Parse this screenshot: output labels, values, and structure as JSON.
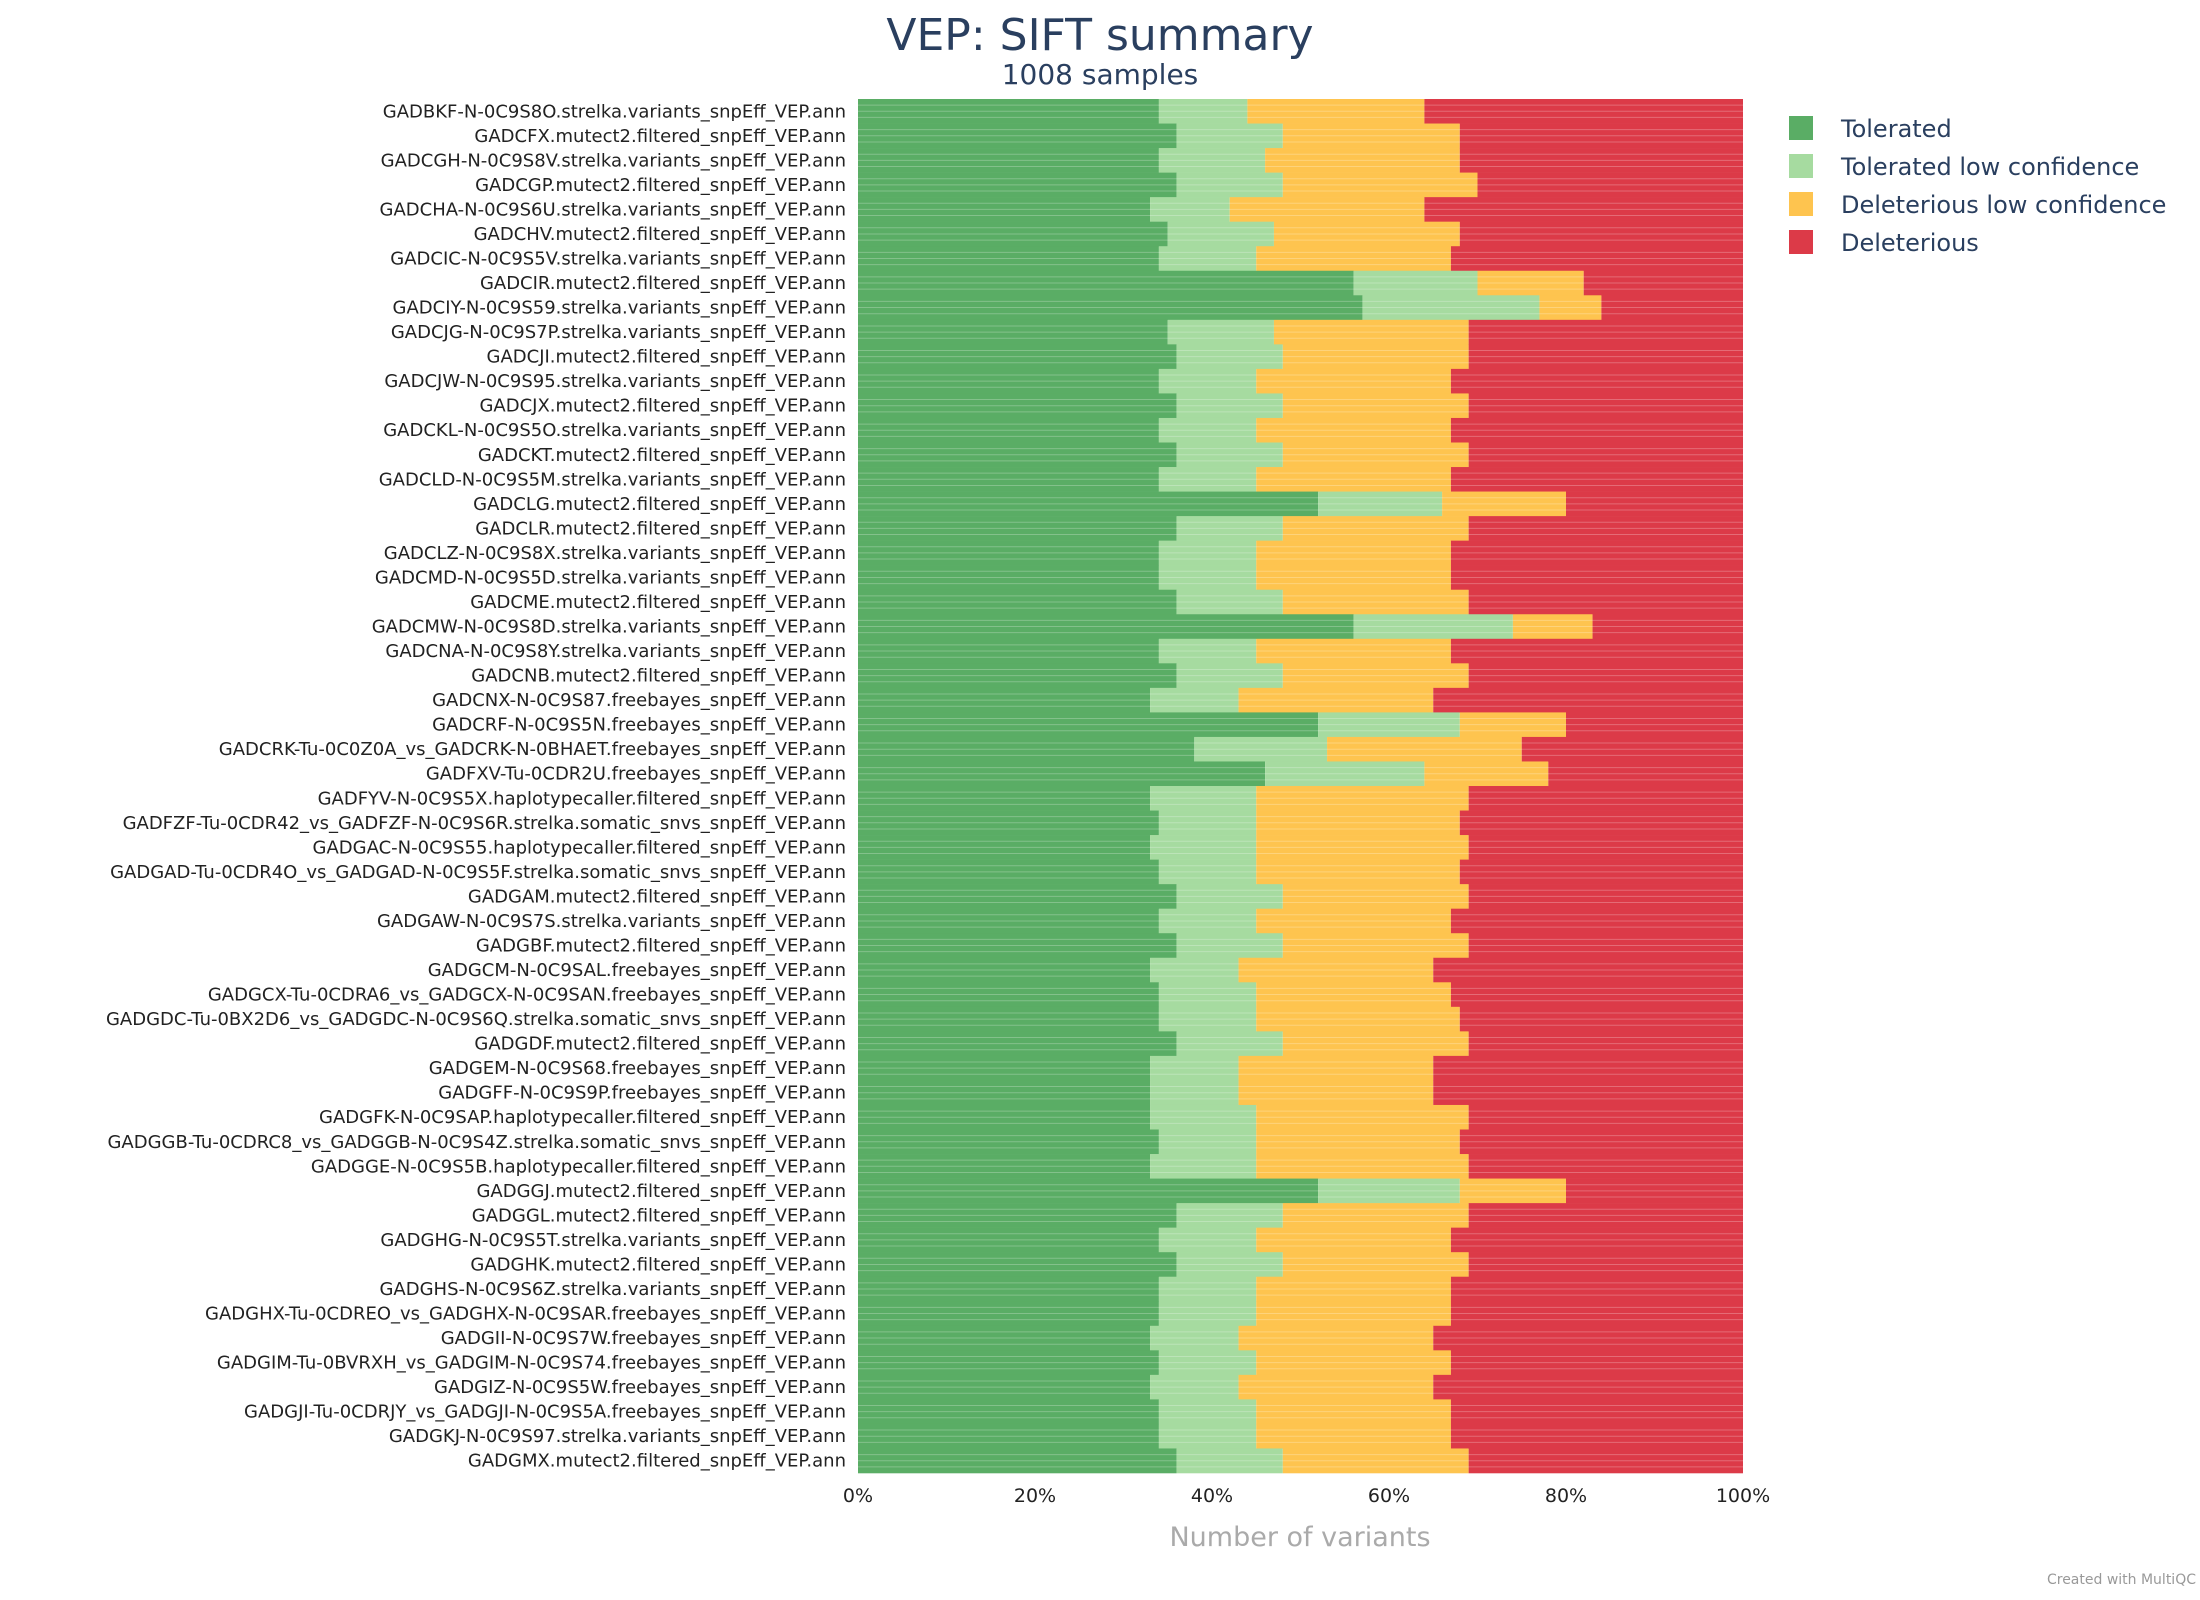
{
  "chart_data": {
    "type": "bar",
    "orientation": "horizontal",
    "stacked": "percent",
    "title": "VEP: SIFT summary",
    "subtitle": "1008 samples",
    "xlabel": "Number of variants",
    "xticks": [
      "0%",
      "20%",
      "40%",
      "60%",
      "80%",
      "100%"
    ],
    "xlim": [
      0,
      100
    ],
    "legend_position": "top-right",
    "series": [
      {
        "name": "Tolerated",
        "color": "#5aad65"
      },
      {
        "name": "Tolerated low confidence",
        "color": "#a6dba0"
      },
      {
        "name": "Deleterious low confidence",
        "color": "#fec44f"
      },
      {
        "name": "Deleterious",
        "color": "#dc3a48"
      }
    ],
    "sample_count": 1008,
    "typical_share_percent": {
      "Tolerated": 33,
      "Tolerated low confidence": 13,
      "Deleterious low confidence": 23,
      "Deleterious": 31
    },
    "labeled_categories": [
      {
        "label": "GADBKF-N-0C9S8O.strelka.variants_snpEff_VEP.ann",
        "values": [
          34,
          10,
          20,
          36
        ]
      },
      {
        "label": "GADCFX.mutect2.filtered_snpEff_VEP.ann",
        "values": [
          36,
          12,
          20,
          32
        ]
      },
      {
        "label": "GADCGH-N-0C9S8V.strelka.variants_snpEff_VEP.ann",
        "values": [
          34,
          12,
          22,
          32
        ]
      },
      {
        "label": "GADCGP.mutect2.filtered_snpEff_VEP.ann",
        "values": [
          36,
          12,
          22,
          30
        ]
      },
      {
        "label": "GADCHA-N-0C9S6U.strelka.variants_snpEff_VEP.ann",
        "values": [
          33,
          9,
          22,
          36
        ]
      },
      {
        "label": "GADCHV.mutect2.filtered_snpEff_VEP.ann",
        "values": [
          35,
          12,
          21,
          32
        ]
      },
      {
        "label": "GADCIC-N-0C9S5V.strelka.variants_snpEff_VEP.ann",
        "values": [
          34,
          11,
          22,
          33
        ]
      },
      {
        "label": "GADCIR.mutect2.filtered_snpEff_VEP.ann",
        "values": [
          56,
          14,
          12,
          18
        ]
      },
      {
        "label": "GADCIY-N-0C9S59.strelka.variants_snpEff_VEP.ann",
        "values": [
          57,
          20,
          7,
          16
        ]
      },
      {
        "label": "GADCJG-N-0C9S7P.strelka.variants_snpEff_VEP.ann",
        "values": [
          35,
          12,
          22,
          31
        ]
      },
      {
        "label": "GADCJI.mutect2.filtered_snpEff_VEP.ann",
        "values": [
          36,
          12,
          21,
          31
        ]
      },
      {
        "label": "GADCJW-N-0C9S95.strelka.variants_snpEff_VEP.ann",
        "values": [
          34,
          11,
          22,
          33
        ]
      },
      {
        "label": "GADCJX.mutect2.filtered_snpEff_VEP.ann",
        "values": [
          36,
          12,
          21,
          31
        ]
      },
      {
        "label": "GADCKL-N-0C9S5O.strelka.variants_snpEff_VEP.ann",
        "values": [
          34,
          11,
          22,
          33
        ]
      },
      {
        "label": "GADCKT.mutect2.filtered_snpEff_VEP.ann",
        "values": [
          36,
          12,
          21,
          31
        ]
      },
      {
        "label": "GADCLD-N-0C9S5M.strelka.variants_snpEff_VEP.ann",
        "values": [
          34,
          11,
          22,
          33
        ]
      },
      {
        "label": "GADCLG.mutect2.filtered_snpEff_VEP.ann",
        "values": [
          52,
          14,
          14,
          20
        ]
      },
      {
        "label": "GADCLR.mutect2.filtered_snpEff_VEP.ann",
        "values": [
          36,
          12,
          21,
          31
        ]
      },
      {
        "label": "GADCLZ-N-0C9S8X.strelka.variants_snpEff_VEP.ann",
        "values": [
          34,
          11,
          22,
          33
        ]
      },
      {
        "label": "GADCMD-N-0C9S5D.strelka.variants_snpEff_VEP.ann",
        "values": [
          34,
          11,
          22,
          33
        ]
      },
      {
        "label": "GADCME.mutect2.filtered_snpEff_VEP.ann",
        "values": [
          36,
          12,
          21,
          31
        ]
      },
      {
        "label": "GADCMW-N-0C9S8D.strelka.variants_snpEff_VEP.ann",
        "values": [
          56,
          18,
          9,
          17
        ]
      },
      {
        "label": "GADCNA-N-0C9S8Y.strelka.variants_snpEff_VEP.ann",
        "values": [
          34,
          11,
          22,
          33
        ]
      },
      {
        "label": "GADCNB.mutect2.filtered_snpEff_VEP.ann",
        "values": [
          36,
          12,
          21,
          31
        ]
      },
      {
        "label": "GADCNX-N-0C9S87.freebayes_snpEff_VEP.ann",
        "values": [
          33,
          10,
          22,
          35
        ]
      },
      {
        "label": "GADCRF-N-0C9S5N.freebayes_snpEff_VEP.ann",
        "values": [
          52,
          16,
          12,
          20
        ]
      },
      {
        "label": "GADCRK-Tu-0C0Z0A_vs_GADCRK-N-0BHAET.freebayes_snpEff_VEP.ann",
        "values": [
          38,
          15,
          22,
          25
        ]
      },
      {
        "label": "GADFXV-Tu-0CDR2U.freebayes_snpEff_VEP.ann",
        "values": [
          46,
          18,
          14,
          22
        ]
      },
      {
        "label": "GADFYV-N-0C9S5X.haplotypecaller.filtered_snpEff_VEP.ann",
        "values": [
          33,
          12,
          24,
          31
        ]
      },
      {
        "label": "GADFZF-Tu-0CDR42_vs_GADFZF-N-0C9S6R.strelka.somatic_snvs_snpEff_VEP.ann",
        "values": [
          34,
          11,
          23,
          32
        ]
      },
      {
        "label": "GADGAC-N-0C9S55.haplotypecaller.filtered_snpEff_VEP.ann",
        "values": [
          33,
          12,
          24,
          31
        ]
      },
      {
        "label": "GADGAD-Tu-0CDR4O_vs_GADGAD-N-0C9S5F.strelka.somatic_snvs_snpEff_VEP.ann",
        "values": [
          34,
          11,
          23,
          32
        ]
      },
      {
        "label": "GADGAM.mutect2.filtered_snpEff_VEP.ann",
        "values": [
          36,
          12,
          21,
          31
        ]
      },
      {
        "label": "GADGAW-N-0C9S7S.strelka.variants_snpEff_VEP.ann",
        "values": [
          34,
          11,
          22,
          33
        ]
      },
      {
        "label": "GADGBF.mutect2.filtered_snpEff_VEP.ann",
        "values": [
          36,
          12,
          21,
          31
        ]
      },
      {
        "label": "GADGCM-N-0C9SAL.freebayes_snpEff_VEP.ann",
        "values": [
          33,
          10,
          22,
          35
        ]
      },
      {
        "label": "GADGCX-Tu-0CDRA6_vs_GADGCX-N-0C9SAN.freebayes_snpEff_VEP.ann",
        "values": [
          34,
          11,
          22,
          33
        ]
      },
      {
        "label": "GADGDC-Tu-0BX2D6_vs_GADGDC-N-0C9S6Q.strelka.somatic_snvs_snpEff_VEP.ann",
        "values": [
          34,
          11,
          23,
          32
        ]
      },
      {
        "label": "GADGDF.mutect2.filtered_snpEff_VEP.ann",
        "values": [
          36,
          12,
          21,
          31
        ]
      },
      {
        "label": "GADGEM-N-0C9S68.freebayes_snpEff_VEP.ann",
        "values": [
          33,
          10,
          22,
          35
        ]
      },
      {
        "label": "GADGFF-N-0C9S9P.freebayes_snpEff_VEP.ann",
        "values": [
          33,
          10,
          22,
          35
        ]
      },
      {
        "label": "GADGFK-N-0C9SAP.haplotypecaller.filtered_snpEff_VEP.ann",
        "values": [
          33,
          12,
          24,
          31
        ]
      },
      {
        "label": "GADGGB-Tu-0CDRC8_vs_GADGGB-N-0C9S4Z.strelka.somatic_snvs_snpEff_VEP.ann",
        "values": [
          34,
          11,
          23,
          32
        ]
      },
      {
        "label": "GADGGE-N-0C9S5B.haplotypecaller.filtered_snpEff_VEP.ann",
        "values": [
          33,
          12,
          24,
          31
        ]
      },
      {
        "label": "GADGGJ.mutect2.filtered_snpEff_VEP.ann",
        "values": [
          52,
          16,
          12,
          20
        ]
      },
      {
        "label": "GADGGL.mutect2.filtered_snpEff_VEP.ann",
        "values": [
          36,
          12,
          21,
          31
        ]
      },
      {
        "label": "GADGHG-N-0C9S5T.strelka.variants_snpEff_VEP.ann",
        "values": [
          34,
          11,
          22,
          33
        ]
      },
      {
        "label": "GADGHK.mutect2.filtered_snpEff_VEP.ann",
        "values": [
          36,
          12,
          21,
          31
        ]
      },
      {
        "label": "GADGHS-N-0C9S6Z.strelka.variants_snpEff_VEP.ann",
        "values": [
          34,
          11,
          22,
          33
        ]
      },
      {
        "label": "GADGHX-Tu-0CDREO_vs_GADGHX-N-0C9SAR.freebayes_snpEff_VEP.ann",
        "values": [
          34,
          11,
          22,
          33
        ]
      },
      {
        "label": "GADGII-N-0C9S7W.freebayes_snpEff_VEP.ann",
        "values": [
          33,
          10,
          22,
          35
        ]
      },
      {
        "label": "GADGIM-Tu-0BVRXH_vs_GADGIM-N-0C9S74.freebayes_snpEff_VEP.ann",
        "values": [
          34,
          11,
          22,
          33
        ]
      },
      {
        "label": "GADGIZ-N-0C9S5W.freebayes_snpEff_VEP.ann",
        "values": [
          33,
          10,
          22,
          35
        ]
      },
      {
        "label": "GADGJI-Tu-0CDRJY_vs_GADGJI-N-0C9S5A.freebayes_snpEff_VEP.ann",
        "values": [
          34,
          11,
          22,
          33
        ]
      },
      {
        "label": "GADGKJ-N-0C9S97.strelka.variants_snpEff_VEP.ann",
        "values": [
          34,
          11,
          22,
          33
        ]
      },
      {
        "label": "GADGMX.mutect2.filtered_snpEff_VEP.ann",
        "values": [
          36,
          12,
          21,
          31
        ]
      }
    ]
  },
  "footer": {
    "credit": "Created with MultiQC"
  }
}
